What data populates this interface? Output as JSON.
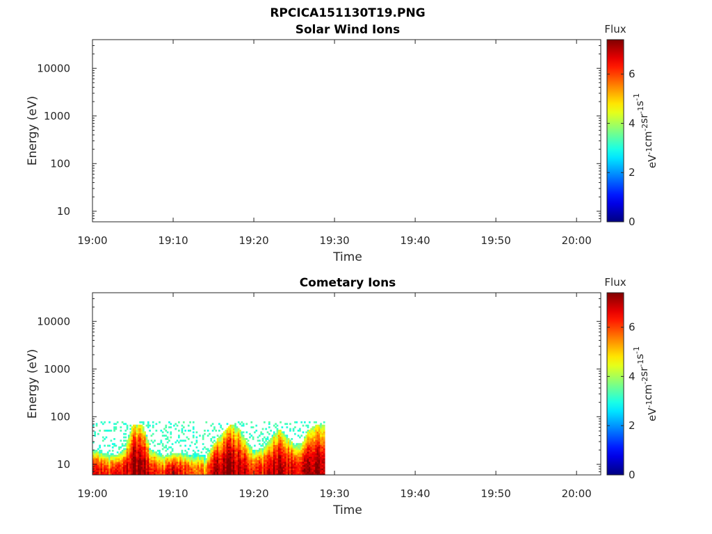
{
  "figure": {
    "file_title": "RPCICA151130T19.PNG"
  },
  "colorbar": {
    "label": "Flux",
    "unit_parts": [
      "eV",
      "-1",
      "cm",
      "-2",
      "sr",
      "-1",
      "s",
      "-1"
    ],
    "range": [
      0,
      7.4
    ],
    "ticks": [
      "0",
      "2",
      "4",
      "6"
    ],
    "colormap": "jet"
  },
  "chart_data": [
    {
      "type": "heatmap",
      "title": "Solar Wind Ions",
      "xlabel": "Time",
      "ylabel": "Energy (eV)",
      "x_ticks": [
        "19:00",
        "19:10",
        "19:20",
        "19:30",
        "19:40",
        "19:50",
        "20:00"
      ],
      "xlim_minutes": [
        0,
        63
      ],
      "y_scale": "log",
      "ylim": [
        6,
        40000
      ],
      "y_ticks": [
        "10",
        "100",
        "1000",
        "10000"
      ],
      "data": []
    },
    {
      "type": "heatmap",
      "title": "Cometary Ions",
      "xlabel": "Time",
      "ylabel": "Energy (eV)",
      "x_ticks": [
        "19:00",
        "19:10",
        "19:20",
        "19:30",
        "19:40",
        "19:50",
        "20:00"
      ],
      "xlim_minutes": [
        0,
        63
      ],
      "y_scale": "log",
      "ylim": [
        6,
        40000
      ],
      "y_ticks": [
        "10",
        "100",
        "1000",
        "10000"
      ],
      "data_time_range": [
        "19:00",
        "19:29"
      ],
      "energy_range_ev": [
        6,
        80
      ],
      "profile_minutes": [
        0,
        1,
        2,
        3,
        4,
        5,
        6,
        7,
        8,
        9,
        10,
        11,
        12,
        13,
        14,
        15,
        16,
        17,
        18,
        19,
        20,
        21,
        22,
        23,
        24,
        25,
        26,
        27,
        28,
        29
      ],
      "profile_max_energy_ev": [
        20,
        18,
        17,
        16,
        22,
        70,
        70,
        22,
        17,
        16,
        17,
        18,
        16,
        17,
        15,
        28,
        45,
        70,
        60,
        30,
        20,
        22,
        35,
        55,
        40,
        25,
        30,
        60,
        70,
        70
      ],
      "profile_peak_flux": [
        6.5,
        6.3,
        6.0,
        6.2,
        6.6,
        7.2,
        7.3,
        6.8,
        6.0,
        6.2,
        6.8,
        6.4,
        6.0,
        5.8,
        5.6,
        7.0,
        7.2,
        7.3,
        7.0,
        6.6,
        6.2,
        6.4,
        6.9,
        7.0,
        6.8,
        6.7,
        6.9,
        7.0,
        7.1,
        7.0
      ]
    }
  ]
}
